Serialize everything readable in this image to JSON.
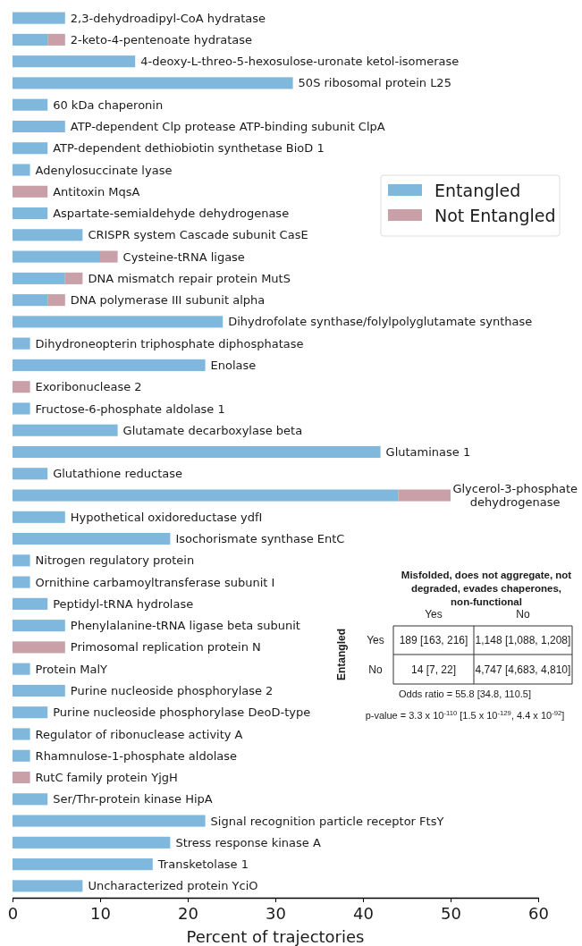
{
  "chart_data": [
    {
      "type": "bar",
      "orientation": "horizontal",
      "stacked": true,
      "xlabel": "Percent of trajectories",
      "xlim": [
        0,
        60
      ],
      "xticks": [
        0,
        10,
        20,
        30,
        40,
        50,
        60
      ],
      "legend": "top right",
      "grid": false,
      "tick_labels": "x",
      "categories": [
        "2,3-dehydroadipyl-CoA hydratase",
        "2-keto-4-pentenoate hydratase",
        "4-deoxy-L-threo-5-hexosulose-uronate ketol-isomerase",
        "50S ribosomal protein L25",
        "60 kDa chaperonin",
        "ATP-dependent Clp protease ATP-binding subunit ClpA",
        "ATP-dependent dethiobiotin synthetase BioD 1",
        "Adenylosuccinate lyase",
        "Antitoxin MqsA",
        "Aspartate-semialdehyde dehydrogenase",
        "CRISPR system Cascade subunit CasE",
        "Cysteine-tRNA ligase",
        "DNA mismatch repair protein MutS",
        "DNA polymerase III subunit alpha",
        "Dihydrofolate synthase/folylpolyglutamate synthase",
        "Dihydroneopterin triphosphate diphosphatase",
        "Enolase",
        "Exoribonuclease 2",
        "Fructose-6-phosphate aldolase 1",
        "Glutamate decarboxylase beta",
        "Glutaminase 1",
        "Glutathione reductase",
        "Glycerol-3-phosphate dehydrogenase",
        "Hypothetical oxidoreductase ydfI",
        "Isochorismate synthase EntC",
        "Nitrogen regulatory protein",
        "Ornithine carbamoyltransferase subunit I",
        "Peptidyl-tRNA hydrolase",
        "Phenylalanine-tRNA ligase beta subunit",
        "Primosomal replication protein N",
        "Protein MalY",
        "Purine nucleoside phosphorylase 2",
        "Purine nucleoside phosphorylase DeoD-type",
        "Regulator of ribonuclease activity A",
        "Rhamnulose-1-phosphate aldolase",
        "RutC family protein YjgH",
        "Ser/Thr-protein kinase HipA",
        "Signal recognition particle receptor FtsY",
        "Stress response kinase A",
        "Transketolase 1",
        "Uncharacterized protein YciO"
      ],
      "series": [
        {
          "name": "Entangled",
          "color": "#7fb8dc",
          "values": [
            6,
            4,
            14,
            32,
            4,
            6,
            4,
            2,
            0,
            4,
            8,
            10,
            6,
            4,
            24,
            2,
            22,
            0,
            2,
            12,
            42,
            4,
            44,
            6,
            18,
            2,
            2,
            4,
            6,
            0,
            2,
            6,
            4,
            2,
            2,
            0,
            4,
            22,
            18,
            16,
            8
          ]
        },
        {
          "name": "Not Entangled",
          "color": "#c9a0a8",
          "values": [
            0,
            2,
            0,
            0,
            0,
            0,
            0,
            0,
            4,
            0,
            0,
            2,
            2,
            2,
            0,
            0,
            0,
            2,
            0,
            0,
            0,
            0,
            6,
            0,
            0,
            0,
            0,
            0,
            0,
            6,
            0,
            0,
            0,
            0,
            0,
            2,
            0,
            0,
            0,
            0,
            0
          ]
        }
      ]
    },
    {
      "type": "other",
      "title": "Misfolded, does not aggregate, not degraded, evades chaperones, non-functional",
      "ylabel": "Entangled",
      "categories": [
        "Yes",
        "No"
      ],
      "y_categories": [
        "Yes",
        "No"
      ],
      "cell_labels": [
        [
          "189 [163, 216]",
          "1,148 [1,088, 1,208]"
        ],
        [
          "14 [7, 22]",
          "4,747 [4,683, 4,810]"
        ]
      ],
      "annotations": [
        "Odds ratio = 55.8 [34.8, 110.5]",
        "p-value = 3.3 x 10$^{-110}$ [1.5 x 10$^{-129}$, 4.4 x 10$^{-92}$]"
      ]
    }
  ]
}
